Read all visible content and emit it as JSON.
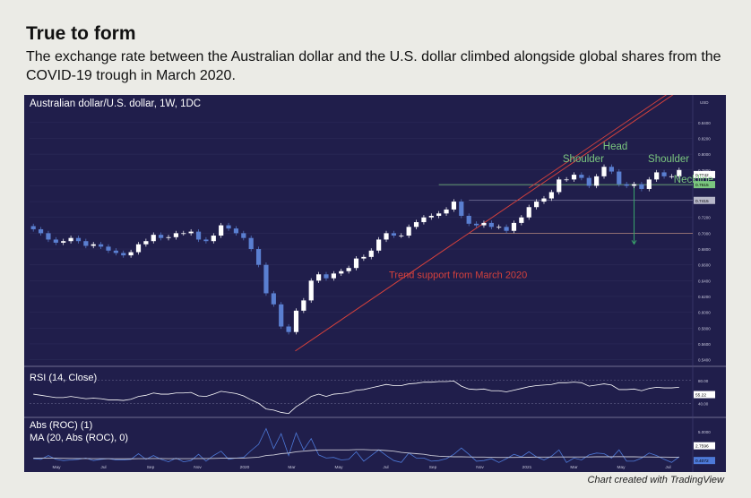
{
  "title": "True to form",
  "subtitle": "The exchange rate between the Australian dollar and the U.S. dollar climbed alongside global shares from the COVID-19 trough in March 2020.",
  "credit": "Chart created with TradingView",
  "colors": {
    "panel_bg": "#201e4b",
    "up": "#ffffff",
    "down": "#5a7fd1",
    "trend": "#d5413c",
    "neckline": "#7bc77f",
    "target_arrow": "#3aa66b",
    "grid": "#34325f",
    "rsi_line": "#ffffff",
    "roc_line": "#4d79d8",
    "ma_line": "#c9c9d6"
  },
  "chart_data": [
    {
      "type": "candlestick",
      "title": "Australian dollar/U.S. dollar, 1W, 1DC",
      "y_axis_label": "USD",
      "y_ticks": [
        "0.8400",
        "0.8200",
        "0.8000",
        "0.7800",
        "0.7600",
        "0.7400",
        "0.7200",
        "0.7000",
        "0.6800",
        "0.6600",
        "0.6400",
        "0.6200",
        "0.6000",
        "0.5800",
        "0.5600",
        "0.5400"
      ],
      "ylim": [
        0.535,
        0.85
      ],
      "x_ticks": [
        "May",
        "Jul",
        "Sep",
        "Nov",
        "2020",
        "Mar",
        "May",
        "Jul",
        "Sep",
        "Nov",
        "2021",
        "Mar",
        "May",
        "Jul"
      ],
      "close": [
        0.705,
        0.7,
        0.692,
        0.688,
        0.69,
        0.694,
        0.69,
        0.684,
        0.686,
        0.683,
        0.678,
        0.675,
        0.672,
        0.676,
        0.686,
        0.69,
        0.698,
        0.694,
        0.695,
        0.7,
        0.7,
        0.702,
        0.692,
        0.69,
        0.697,
        0.71,
        0.706,
        0.7,
        0.694,
        0.68,
        0.66,
        0.624,
        0.61,
        0.582,
        0.575,
        0.602,
        0.615,
        0.64,
        0.648,
        0.643,
        0.649,
        0.652,
        0.656,
        0.668,
        0.67,
        0.678,
        0.692,
        0.7,
        0.697,
        0.697,
        0.708,
        0.714,
        0.72,
        0.722,
        0.725,
        0.73,
        0.74,
        0.722,
        0.712,
        0.71,
        0.713,
        0.708,
        0.708,
        0.703,
        0.713,
        0.72,
        0.733,
        0.74,
        0.744,
        0.752,
        0.768,
        0.768,
        0.774,
        0.77,
        0.76,
        0.772,
        0.784,
        0.778,
        0.762,
        0.76,
        0.762,
        0.756,
        0.768,
        0.777,
        0.772,
        0.772,
        0.78
      ],
      "current_price": "0.7742",
      "annotations": [
        "Head",
        "Shoulder",
        "Shoulder",
        "Neckline",
        "Trend support from March 2020"
      ],
      "price_labels": [
        "0.7742",
        "0.7615"
      ],
      "levels": {
        "neckline": 0.7615,
        "prior_high": 0.7415,
        "target": 0.7
      },
      "trendline": {
        "from_low": 0.551,
        "from_label": "Mar 2020",
        "to_level": 0.7,
        "to_label": "Nov 2020"
      }
    },
    {
      "type": "line",
      "title": "RSI (14, Close)",
      "y_ticks": [
        "80.00",
        "40.00"
      ],
      "ylim": [
        20,
        100
      ],
      "current_value": "55.22",
      "values": [
        56,
        54,
        52,
        50,
        50,
        52,
        50,
        48,
        49,
        48,
        46,
        46,
        45,
        47,
        52,
        54,
        58,
        56,
        56,
        58,
        58,
        59,
        53,
        52,
        56,
        61,
        59,
        57,
        53,
        46,
        40,
        30,
        28,
        24,
        22,
        34,
        42,
        52,
        56,
        52,
        56,
        57,
        59,
        63,
        64,
        67,
        70,
        73,
        71,
        71,
        74,
        75,
        77,
        77,
        78,
        78,
        79,
        70,
        65,
        64,
        65,
        62,
        62,
        60,
        63,
        66,
        69,
        71,
        72,
        73,
        76,
        76,
        77,
        76,
        70,
        72,
        74,
        72,
        64,
        64,
        65,
        62,
        66,
        68,
        67,
        67,
        68
      ]
    },
    {
      "type": "line",
      "title": "Abs (ROC) (1)",
      "subtitle": "MA (20, Abs (ROC), 0)",
      "y_ticks": [
        "5.0000",
        "2.5000"
      ],
      "ylim": [
        0,
        7
      ],
      "current_values": [
        "2.7596",
        "0.4072"
      ],
      "series": [
        {
          "name": "Abs (ROC) (1)",
          "values": [
            0.7,
            0.6,
            1.2,
            0.6,
            0.4,
            0.5,
            0.6,
            0.8,
            0.4,
            0.6,
            0.7,
            0.5,
            0.5,
            0.6,
            1.5,
            0.6,
            1.2,
            0.6,
            0.2,
            0.8,
            0.2,
            0.4,
            1.4,
            0.3,
            1.2,
            1.9,
            0.6,
            0.8,
            0.9,
            2.0,
            3.0,
            5.5,
            2.3,
            4.7,
            1.2,
            4.8,
            2.1,
            3.9,
            1.3,
            0.8,
            0.9,
            0.5,
            0.6,
            1.8,
            0.3,
            1.2,
            2.1,
            1.2,
            0.4,
            0.1,
            1.6,
            0.8,
            0.8,
            0.3,
            0.4,
            0.7,
            1.4,
            2.4,
            1.4,
            0.3,
            0.4,
            0.7,
            0.1,
            0.7,
            1.4,
            1.0,
            1.8,
            1.0,
            0.5,
            1.1,
            2.1,
            0.1,
            0.8,
            0.5,
            1.3,
            1.6,
            1.5,
            0.8,
            2.1,
            0.3,
            0.3,
            0.8,
            1.6,
            1.2,
            0.6,
            0.1,
            1.0
          ]
        },
        {
          "name": "MA (20, Abs (ROC), 0)",
          "values": [
            0.8,
            0.8,
            0.8,
            0.78,
            0.76,
            0.74,
            0.72,
            0.72,
            0.7,
            0.7,
            0.7,
            0.68,
            0.68,
            0.68,
            0.7,
            0.7,
            0.72,
            0.72,
            0.7,
            0.7,
            0.7,
            0.7,
            0.72,
            0.72,
            0.74,
            0.78,
            0.78,
            0.8,
            0.8,
            0.86,
            0.94,
            1.2,
            1.3,
            1.5,
            1.6,
            1.8,
            1.9,
            2.0,
            2.1,
            2.1,
            2.1,
            2.1,
            2.1,
            2.15,
            2.15,
            2.1,
            2.1,
            2.0,
            1.9,
            1.7,
            1.6,
            1.5,
            1.4,
            1.2,
            1.1,
            1.05,
            1.0,
            1.0,
            0.98,
            0.96,
            0.95,
            0.92,
            0.9,
            0.9,
            0.9,
            0.92,
            0.93,
            0.95,
            0.95,
            0.95,
            0.98,
            0.98,
            0.98,
            0.98,
            0.98,
            1.0,
            1.0,
            1.0,
            1.02,
            1.0,
            1.0,
            0.98,
            0.98,
            0.96,
            0.95,
            0.94,
            0.94
          ]
        }
      ]
    }
  ]
}
